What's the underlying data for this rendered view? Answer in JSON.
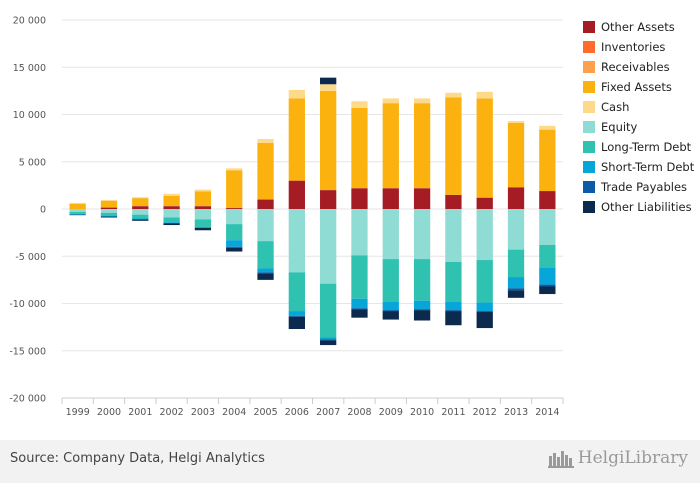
{
  "chart_data": {
    "type": "bar",
    "stacked": true,
    "categories": [
      "1999",
      "2000",
      "2001",
      "2002",
      "2003",
      "2004",
      "2005",
      "2006",
      "2007",
      "2008",
      "2009",
      "2010",
      "2011",
      "2012",
      "2013",
      "2014"
    ],
    "ylim": [
      -20000,
      20000
    ],
    "yticks": [
      -20000,
      -15000,
      -10000,
      -5000,
      0,
      5000,
      10000,
      15000,
      20000
    ],
    "ytick_labels": [
      "-20 000",
      "-15 000",
      "-10 000",
      "-5 000",
      "0",
      "5 000",
      "10 000",
      "15 000",
      "20 000"
    ],
    "grid": true,
    "legend_position": "right",
    "series": [
      {
        "name": "Other Assets",
        "color": "#a51c24",
        "side": "pos",
        "values": [
          0,
          150,
          300,
          300,
          300,
          100,
          1000,
          3000,
          2000,
          2200,
          2200,
          2200,
          1500,
          1200,
          2300,
          1900
        ]
      },
      {
        "name": "Inventories",
        "color": "#ff6b2b",
        "side": "pos",
        "values": [
          0,
          0,
          0,
          0,
          0,
          0,
          0,
          0,
          0,
          0,
          0,
          0,
          0,
          0,
          0,
          0
        ]
      },
      {
        "name": "Receivables",
        "color": "#ffa04d",
        "side": "pos",
        "values": [
          0,
          0,
          0,
          0,
          0,
          0,
          0,
          0,
          0,
          0,
          0,
          0,
          0,
          0,
          0,
          0
        ]
      },
      {
        "name": "Fixed Assets",
        "color": "#fbb20f",
        "side": "pos",
        "values": [
          550,
          700,
          850,
          1100,
          1550,
          4000,
          6000,
          8700,
          10500,
          8500,
          9000,
          9000,
          10300,
          10500,
          6800,
          6500
        ]
      },
      {
        "name": "Cash",
        "color": "#fdd98a",
        "side": "pos",
        "values": [
          100,
          100,
          100,
          200,
          200,
          200,
          400,
          900,
          700,
          700,
          500,
          500,
          500,
          700,
          200,
          400
        ]
      },
      {
        "name": "Equity",
        "color": "#8edcd3",
        "side": "neg",
        "values": [
          -300,
          -400,
          -600,
          -900,
          -1100,
          -1600,
          -3400,
          -6700,
          -7900,
          -4900,
          -5300,
          -5300,
          -5600,
          -5400,
          -4300,
          -3800
        ]
      },
      {
        "name": "Long-Term Debt",
        "color": "#30c2b0",
        "side": "neg",
        "values": [
          -200,
          -300,
          -400,
          -500,
          -800,
          -1700,
          -2900,
          -4100,
          -5700,
          -4600,
          -4500,
          -4400,
          -4200,
          -4500,
          -2900,
          -2400
        ]
      },
      {
        "name": "Short-Term Debt",
        "color": "#07a6d9",
        "side": "neg",
        "values": [
          -100,
          -100,
          -100,
          -100,
          -100,
          -700,
          -400,
          -500,
          -200,
          -1000,
          -900,
          -900,
          -900,
          -900,
          -1200,
          -1800
        ]
      },
      {
        "name": "Trade Payables",
        "color": "#0d5aa7",
        "side": "neg",
        "values": [
          0,
          0,
          0,
          0,
          0,
          -100,
          -100,
          -100,
          -100,
          -100,
          -100,
          -100,
          -100,
          -100,
          -200,
          -200
        ]
      },
      {
        "name": "Other Liabilities",
        "color": "#0c2a4e",
        "side": "neg",
        "values": [
          -50,
          -100,
          -150,
          -200,
          -250,
          -400,
          -700,
          -1300,
          -500,
          -900,
          -900,
          -1100,
          -1500,
          -1700,
          -800,
          -800
        ]
      }
    ],
    "positive_extra_top": {
      "category": "2007",
      "value": 700,
      "color": "#0c2a4e"
    }
  },
  "footer": {
    "source": "Source: Company Data, Helgi Analytics",
    "logo": "HelgiLibrary"
  }
}
